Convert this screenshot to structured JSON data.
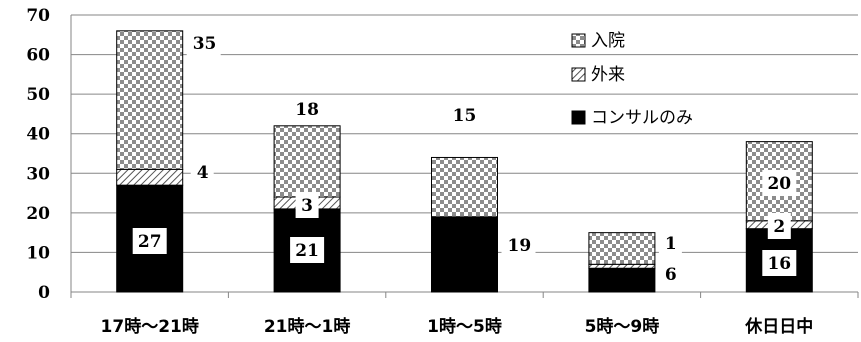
{
  "chart_data": {
    "type": "bar",
    "stacked": true,
    "categories": [
      "17時～21時",
      "21時～1時",
      "1時～5時",
      "5時～9時",
      "休日日中"
    ],
    "series": [
      {
        "name": "コンサルのみ",
        "values": [
          27,
          21,
          19,
          6,
          16
        ],
        "pattern": "solid-black"
      },
      {
        "name": "外来",
        "values": [
          4,
          3,
          0,
          1,
          2
        ],
        "pattern": "diagonal-hatch"
      },
      {
        "name": "入院",
        "values": [
          35,
          18,
          15,
          8,
          20
        ],
        "pattern": "checkerboard"
      }
    ],
    "data_labels": [
      {
        "category": "17時～21時",
        "series": "コンサルのみ",
        "text": "27"
      },
      {
        "category": "17時～21時",
        "series": "外来",
        "text": "4"
      },
      {
        "category": "17時～21時",
        "series": "入院",
        "text": "35"
      },
      {
        "category": "21時～1時",
        "series": "コンサルのみ",
        "text": "21"
      },
      {
        "category": "21時～1時",
        "series": "外来",
        "text": "3"
      },
      {
        "category": "21時～1時",
        "series": "入院",
        "text": "18"
      },
      {
        "category": "1時～5時",
        "series": "コンサルのみ",
        "text": "19"
      },
      {
        "category": "1時～5時",
        "series": "入院",
        "text": "15"
      },
      {
        "category": "5時～9時",
        "series": "コンサルのみ",
        "text": "6"
      },
      {
        "category": "5時～9時",
        "series": "外来",
        "text": "1"
      },
      {
        "category": "休日日中",
        "series": "コンサルのみ",
        "text": "16"
      },
      {
        "category": "休日日中",
        "series": "外来",
        "text": "2"
      },
      {
        "category": "休日日中",
        "series": "入院",
        "text": "20"
      }
    ],
    "y_ticks": [
      "0",
      "10",
      "20",
      "30",
      "40",
      "50",
      "60",
      "70"
    ],
    "ylim": [
      0,
      70
    ],
    "title": "",
    "xlabel": "",
    "ylabel": "",
    "grid": "horizontal",
    "legend_position": "top-right",
    "legend_order": [
      "入院",
      "外来",
      "コンサルのみ"
    ],
    "colors": {
      "axis": "#868686",
      "grid": "#868686",
      "bar_edge": "#000000",
      "fill": "#000000"
    }
  }
}
